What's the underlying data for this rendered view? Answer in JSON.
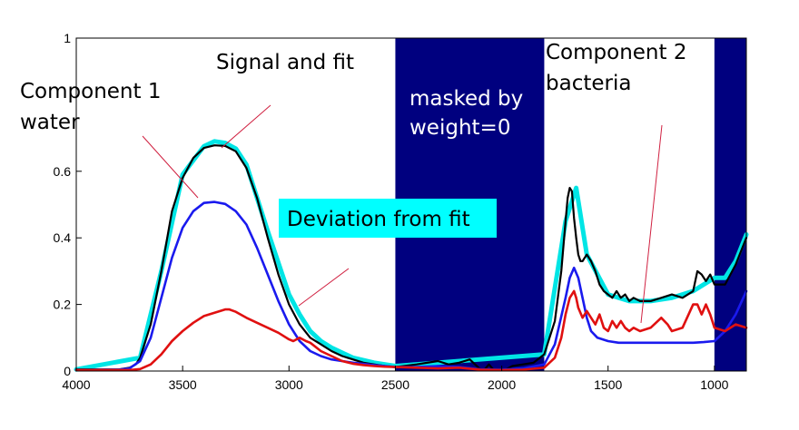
{
  "chart_data": {
    "type": "line",
    "xlim": [
      4000,
      850
    ],
    "ylim": [
      0,
      1
    ],
    "x_reversed": true,
    "grid": false,
    "x_ticks": [
      4000,
      3500,
      3000,
      2500,
      2000,
      1500,
      1000
    ],
    "x_tick_labels": [
      "4000",
      "3500",
      "3000",
      "2500",
      "2000",
      "1500",
      "1000"
    ],
    "y_ticks": [
      0,
      0.2,
      0.4,
      0.6,
      1
    ],
    "y_tick_labels": [
      "0",
      "0.2",
      "0.4",
      "0.6",
      "1"
    ],
    "masked_regions": [
      [
        2500,
        1800
      ],
      [
        1000,
        850
      ]
    ],
    "colors": {
      "signal": "#000000",
      "fit": "#00e5e5",
      "water": "#1a1aee",
      "bacteria": "#e01010",
      "mask": "#00007f",
      "deviation_box": "#00ffff",
      "pointer": "#d02040"
    },
    "series": [
      {
        "key": "signal",
        "x": [
          4000,
          3800,
          3750,
          3720,
          3700,
          3650,
          3600,
          3550,
          3500,
          3450,
          3400,
          3350,
          3300,
          3250,
          3200,
          3150,
          3100,
          3050,
          3000,
          2950,
          2900,
          2850,
          2800,
          2750,
          2700,
          2650,
          2600,
          2550,
          2500,
          2400,
          2300,
          2250,
          2200,
          2150,
          2100,
          2080,
          2060,
          2040,
          2020,
          2000,
          1980,
          1950,
          1900,
          1850,
          1800,
          1750,
          1720,
          1700,
          1690,
          1680,
          1670,
          1660,
          1650,
          1640,
          1630,
          1620,
          1610,
          1600,
          1580,
          1560,
          1550,
          1540,
          1520,
          1500,
          1480,
          1460,
          1440,
          1420,
          1400,
          1380,
          1350,
          1300,
          1250,
          1200,
          1150,
          1100,
          1080,
          1060,
          1040,
          1020,
          1000,
          950,
          900,
          850
        ],
        "y": [
          0.005,
          0.005,
          0.01,
          0.02,
          0.04,
          0.14,
          0.3,
          0.48,
          0.58,
          0.64,
          0.67,
          0.678,
          0.676,
          0.66,
          0.61,
          0.52,
          0.4,
          0.29,
          0.2,
          0.14,
          0.1,
          0.08,
          0.06,
          0.045,
          0.035,
          0.025,
          0.02,
          0.015,
          0.012,
          0.02,
          0.03,
          0.02,
          0.025,
          0.035,
          0.005,
          0.005,
          0.02,
          0.005,
          0.002,
          0.002,
          0.005,
          0.015,
          0.02,
          0.025,
          0.05,
          0.15,
          0.3,
          0.45,
          0.52,
          0.55,
          0.54,
          0.46,
          0.4,
          0.35,
          0.33,
          0.33,
          0.34,
          0.35,
          0.33,
          0.3,
          0.28,
          0.26,
          0.24,
          0.23,
          0.22,
          0.24,
          0.22,
          0.23,
          0.21,
          0.22,
          0.21,
          0.21,
          0.22,
          0.23,
          0.22,
          0.24,
          0.3,
          0.29,
          0.27,
          0.29,
          0.26,
          0.26,
          0.32,
          0.4
        ]
      },
      {
        "key": "fit",
        "x": [
          4000,
          3700,
          3600,
          3500,
          3400,
          3350,
          3300,
          3250,
          3200,
          3100,
          3000,
          2950,
          2900,
          2850,
          2800,
          2700,
          2600,
          2500,
          1800,
          1700,
          1650,
          1600,
          1500,
          1400,
          1300,
          1200,
          1100,
          1000,
          950,
          900,
          850
        ],
        "y": [
          0.005,
          0.04,
          0.3,
          0.59,
          0.675,
          0.69,
          0.685,
          0.668,
          0.62,
          0.42,
          0.23,
          0.17,
          0.12,
          0.09,
          0.07,
          0.04,
          0.025,
          0.015,
          0.05,
          0.45,
          0.55,
          0.35,
          0.23,
          0.21,
          0.21,
          0.22,
          0.24,
          0.28,
          0.28,
          0.33,
          0.41
        ]
      },
      {
        "key": "water",
        "x": [
          4000,
          3800,
          3750,
          3700,
          3650,
          3600,
          3550,
          3500,
          3450,
          3400,
          3350,
          3300,
          3250,
          3200,
          3150,
          3100,
          3050,
          3000,
          2950,
          2900,
          2850,
          2800,
          2700,
          2600,
          2500,
          2400,
          2300,
          2200,
          2100,
          2000,
          1900,
          1800,
          1750,
          1700,
          1680,
          1660,
          1640,
          1620,
          1600,
          1580,
          1550,
          1500,
          1450,
          1400,
          1300,
          1200,
          1100,
          1050,
          1000,
          950,
          900,
          850
        ],
        "y": [
          0.003,
          0.004,
          0.008,
          0.03,
          0.1,
          0.22,
          0.34,
          0.43,
          0.48,
          0.505,
          0.508,
          0.502,
          0.48,
          0.44,
          0.37,
          0.29,
          0.21,
          0.14,
          0.09,
          0.06,
          0.045,
          0.035,
          0.025,
          0.018,
          0.012,
          0.012,
          0.015,
          0.012,
          0.005,
          0.004,
          0.008,
          0.02,
          0.08,
          0.22,
          0.28,
          0.31,
          0.28,
          0.22,
          0.16,
          0.12,
          0.1,
          0.09,
          0.085,
          0.085,
          0.085,
          0.085,
          0.085,
          0.087,
          0.09,
          0.12,
          0.17,
          0.24
        ]
      },
      {
        "key": "bacteria",
        "x": [
          4000,
          3750,
          3700,
          3650,
          3600,
          3550,
          3500,
          3450,
          3400,
          3350,
          3300,
          3280,
          3250,
          3200,
          3150,
          3100,
          3050,
          3000,
          2980,
          2950,
          2920,
          2900,
          2850,
          2800,
          2750,
          2700,
          2650,
          2600,
          2550,
          2500,
          2400,
          2300,
          2200,
          2100,
          2000,
          1900,
          1800,
          1750,
          1720,
          1700,
          1680,
          1660,
          1650,
          1640,
          1620,
          1600,
          1580,
          1560,
          1540,
          1520,
          1500,
          1480,
          1460,
          1440,
          1420,
          1400,
          1380,
          1350,
          1300,
          1250,
          1220,
          1200,
          1150,
          1100,
          1080,
          1060,
          1040,
          1020,
          1000,
          950,
          900,
          850
        ],
        "y": [
          0.003,
          0.003,
          0.006,
          0.02,
          0.05,
          0.09,
          0.12,
          0.145,
          0.165,
          0.175,
          0.185,
          0.185,
          0.178,
          0.16,
          0.145,
          0.13,
          0.115,
          0.095,
          0.09,
          0.1,
          0.09,
          0.085,
          0.06,
          0.045,
          0.03,
          0.022,
          0.018,
          0.015,
          0.013,
          0.012,
          0.01,
          0.008,
          0.01,
          0.004,
          0.003,
          0.004,
          0.01,
          0.04,
          0.1,
          0.17,
          0.22,
          0.24,
          0.22,
          0.19,
          0.16,
          0.18,
          0.16,
          0.14,
          0.17,
          0.13,
          0.12,
          0.15,
          0.13,
          0.15,
          0.13,
          0.12,
          0.13,
          0.12,
          0.13,
          0.16,
          0.14,
          0.12,
          0.13,
          0.2,
          0.2,
          0.17,
          0.2,
          0.17,
          0.13,
          0.12,
          0.14,
          0.13
        ]
      }
    ],
    "annotations": {
      "signal_and_fit": "Signal and fit",
      "component1_line1": "Component 1",
      "component1_line2": "water",
      "deviation": "Deviation from fit",
      "masked_line1": "masked by",
      "masked_line2": "weight=0",
      "component2_line1": "Component 2",
      "component2_line2": "bacteria"
    }
  }
}
